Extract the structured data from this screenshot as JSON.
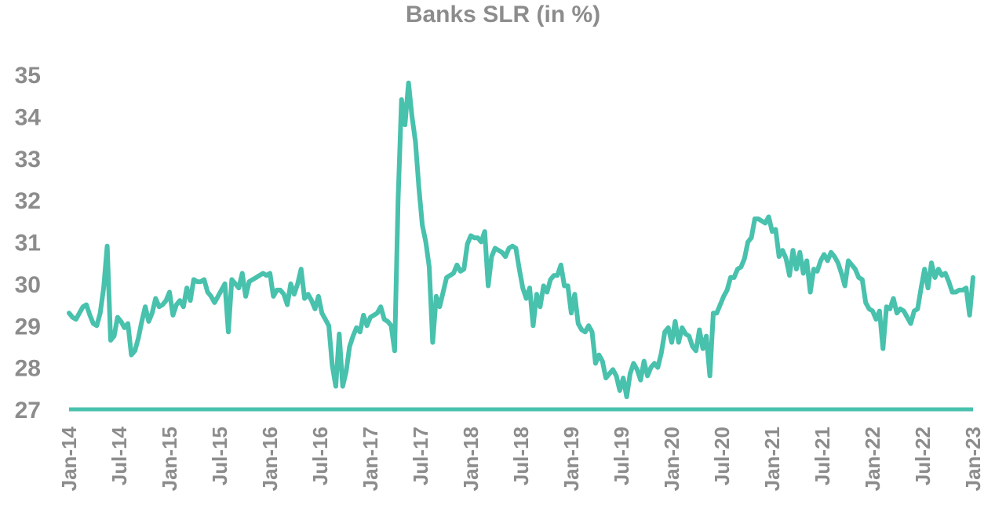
{
  "chart_data": {
    "type": "line",
    "title": "Banks SLR (in %)",
    "xlabel": "",
    "ylabel": "",
    "ylim": [
      27,
      35
    ],
    "yticks": [
      "27",
      "28",
      "29",
      "30",
      "31",
      "32",
      "33",
      "34",
      "35"
    ],
    "xticks": [
      "Jan-14",
      "Jul-14",
      "Jan-15",
      "Jul-15",
      "Jan-16",
      "Jul-16",
      "Jan-17",
      "Jul-17",
      "Jan-18",
      "Jul-18",
      "Jan-19",
      "Jul-19",
      "Jan-20",
      "Jul-20",
      "Jan-21",
      "Jul-21",
      "Jan-22",
      "Jul-22",
      "Jan-23"
    ],
    "grid": false,
    "legend": "none",
    "series": [
      {
        "color": "#48c1ad",
        "x_start": "Jan-14",
        "x_end": "Jan-23",
        "values": [
          29.3,
          29.2,
          29.15,
          29.3,
          29.45,
          29.5,
          29.25,
          29.05,
          29.0,
          29.3,
          29.9,
          30.9,
          28.65,
          28.75,
          29.2,
          29.1,
          28.95,
          29.05,
          28.3,
          28.4,
          28.7,
          29.1,
          29.45,
          29.1,
          29.3,
          29.65,
          29.45,
          29.5,
          29.6,
          29.8,
          29.25,
          29.5,
          29.6,
          29.45,
          29.9,
          29.6,
          30.1,
          30.05,
          30.05,
          30.1,
          29.8,
          29.7,
          29.55,
          29.7,
          29.85,
          30.0,
          28.85,
          30.1,
          30.0,
          29.9,
          30.25,
          29.7,
          30.05,
          30.1,
          30.15,
          30.2,
          30.25,
          30.2,
          30.25,
          29.7,
          29.85,
          29.85,
          29.75,
          29.5,
          30.0,
          29.75,
          30.0,
          30.35,
          29.65,
          29.75,
          29.6,
          29.4,
          29.7,
          29.3,
          29.15,
          29.0,
          28.05,
          27.55,
          28.8,
          27.55,
          27.9,
          28.5,
          28.75,
          28.95,
          28.85,
          29.25,
          29.0,
          29.2,
          29.25,
          29.3,
          29.45,
          29.15,
          29.1,
          29.0,
          28.4,
          32.0,
          34.4,
          33.8,
          34.8,
          34.0,
          33.4,
          32.3,
          31.4,
          31.0,
          30.4,
          28.6,
          29.7,
          29.45,
          29.8,
          30.15,
          30.2,
          30.25,
          30.45,
          30.3,
          30.35,
          30.95,
          31.15,
          31.1,
          31.1,
          31.0,
          31.25,
          29.95,
          30.65,
          30.85,
          30.8,
          30.75,
          30.65,
          30.85,
          30.9,
          30.85,
          30.35,
          29.9,
          29.65,
          29.9,
          29.0,
          29.75,
          29.45,
          29.95,
          29.8,
          30.1,
          30.2,
          30.2,
          30.45,
          29.95,
          29.95,
          29.3,
          29.75,
          29.05,
          28.9,
          28.85,
          29.0,
          28.85,
          28.1,
          28.3,
          28.15,
          27.75,
          27.85,
          27.95,
          27.8,
          27.45,
          27.75,
          27.3,
          27.85,
          28.1,
          27.95,
          27.7,
          28.15,
          27.8,
          28.0,
          28.1,
          28.0,
          28.35,
          28.85,
          28.95,
          28.6,
          29.1,
          28.6,
          28.95,
          28.8,
          28.75,
          28.5,
          28.4,
          28.9,
          28.45,
          28.75,
          27.8,
          29.3,
          29.3,
          29.5,
          29.7,
          29.85,
          30.15,
          30.15,
          30.35,
          30.4,
          30.6,
          31.0,
          31.1,
          31.55,
          31.55,
          31.5,
          31.45,
          31.6,
          31.25,
          31.3,
          30.65,
          30.8,
          30.6,
          30.2,
          30.8,
          30.35,
          30.75,
          30.25,
          30.55,
          29.8,
          30.35,
          30.3,
          30.55,
          30.7,
          30.55,
          30.75,
          30.65,
          30.5,
          30.25,
          29.95,
          30.55,
          30.45,
          30.35,
          30.15,
          30.1,
          29.55,
          29.4,
          29.35,
          29.15,
          29.35,
          28.45,
          29.45,
          29.4,
          29.65,
          29.3,
          29.4,
          29.35,
          29.2,
          29.05,
          29.35,
          29.4,
          29.9,
          30.35,
          29.9,
          30.5,
          30.15,
          30.35,
          30.2,
          30.25,
          30.05,
          29.8,
          29.8,
          29.85,
          29.85,
          29.9,
          29.25,
          30.15
        ]
      }
    ]
  }
}
